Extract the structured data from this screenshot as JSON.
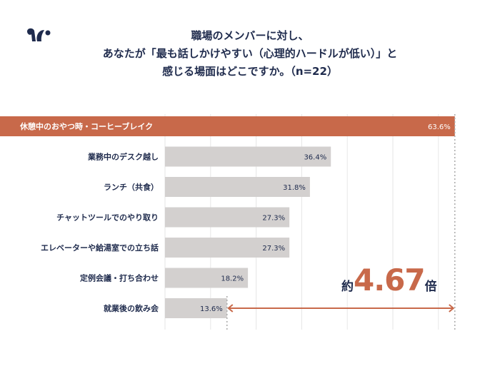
{
  "title_lines": [
    "職場のメンバーに対し、",
    "あなたが「最も話しかけやすい（心理的ハードルが低い）」と",
    "感じる場面はどこですか。（n=22）"
  ],
  "callout": {
    "prefix": "約",
    "value": "4.67",
    "suffix": "倍"
  },
  "colors": {
    "highlight": "#c8694a",
    "bar": "#d3d0cf",
    "text": "#1f2b4d"
  },
  "chart_data": {
    "type": "bar",
    "orientation": "horizontal",
    "categories": [
      "休憩中のおやつ時・コーヒーブレイク",
      "業務中のデスク越し",
      "ランチ（共食）",
      "チャットツールでのやり取り",
      "エレベーターや給湯室での立ち話",
      "定例会議・打ち合わせ",
      "就業後の飲み会"
    ],
    "values": [
      63.6,
      36.4,
      31.8,
      27.3,
      27.3,
      18.2,
      13.6
    ],
    "labels": [
      "63.6%",
      "36.4%",
      "31.8%",
      "27.3%",
      "27.3%",
      "18.2%",
      "13.6%"
    ],
    "xlim": [
      0,
      65
    ],
    "grid": true,
    "highlight_index": 0
  }
}
